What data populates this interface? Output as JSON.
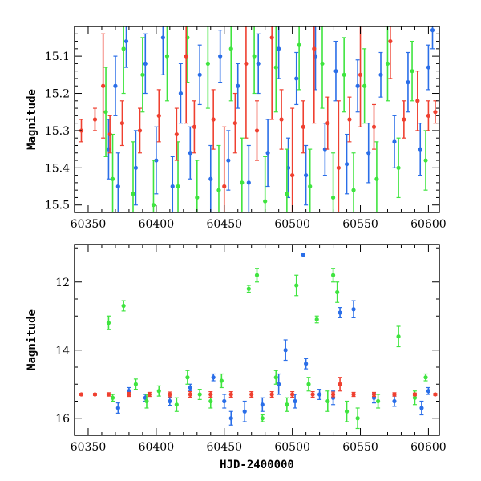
{
  "chart_data": [
    {
      "type": "scatter",
      "panel": "top",
      "title": "",
      "xlabel": "",
      "ylabel": "Magnitude",
      "xlim": [
        60340,
        60608
      ],
      "ylim": [
        15.52,
        15.02
      ],
      "y_inverted": true,
      "x_ticks": [
        60350,
        60400,
        60450,
        60500,
        60550,
        60600
      ],
      "x_tick_labels": [
        "60350",
        "60400",
        "60450",
        "60500",
        "60550",
        "60600"
      ],
      "y_ticks": [
        15.1,
        15.2,
        15.3,
        15.4,
        15.5
      ],
      "y_tick_labels": [
        "15.1",
        "15.2",
        "15.3",
        "15.4",
        "15.5"
      ],
      "grid": false,
      "legend": "none",
      "error_bars": true,
      "series": [
        {
          "color": "#2a6ee8",
          "points": [
            [
              60365,
              15.35,
              0.08
            ],
            [
              60370,
              15.18,
              0.08
            ],
            [
              60372,
              15.45,
              0.09
            ],
            [
              60378,
              15.06,
              0.07
            ],
            [
              60385,
              15.4,
              0.1
            ],
            [
              60392,
              15.12,
              0.08
            ],
            [
              60400,
              15.38,
              0.09
            ],
            [
              60405,
              15.05,
              0.1
            ],
            [
              60412,
              15.45,
              0.08
            ],
            [
              60418,
              15.2,
              0.08
            ],
            [
              60425,
              15.36,
              0.07
            ],
            [
              60432,
              15.15,
              0.08
            ],
            [
              60440,
              15.43,
              0.09
            ],
            [
              60447,
              15.1,
              0.07
            ],
            [
              60453,
              15.38,
              0.08
            ],
            [
              60460,
              15.18,
              0.06
            ],
            [
              60468,
              15.44,
              0.1
            ],
            [
              60475,
              15.12,
              0.08
            ],
            [
              60482,
              15.36,
              0.09
            ],
            [
              60490,
              15.08,
              0.08
            ],
            [
              60497,
              15.4,
              0.08
            ],
            [
              60503,
              15.16,
              0.07
            ],
            [
              60510,
              15.42,
              0.08
            ],
            [
              60517,
              15.1,
              0.09
            ],
            [
              60524,
              15.35,
              0.07
            ],
            [
              60532,
              15.14,
              0.08
            ],
            [
              60540,
              15.39,
              0.08
            ],
            [
              60548,
              15.18,
              0.07
            ],
            [
              60556,
              15.36,
              0.08
            ],
            [
              60565,
              15.15,
              0.06
            ],
            [
              60575,
              15.33,
              0.07
            ],
            [
              60585,
              15.17,
              0.08
            ],
            [
              60594,
              15.35,
              0.07
            ],
            [
              60600,
              15.13,
              0.06
            ],
            [
              60603,
              15.03,
              0.05
            ]
          ]
        },
        {
          "color": "#3fe43f",
          "points": [
            [
              60363,
              15.25,
              0.12
            ],
            [
              60368,
              15.43,
              0.12
            ],
            [
              60376,
              15.08,
              0.12
            ],
            [
              60383,
              15.47,
              0.14
            ],
            [
              60390,
              15.15,
              0.1
            ],
            [
              60398,
              15.5,
              0.12
            ],
            [
              60408,
              15.1,
              0.12
            ],
            [
              60416,
              15.45,
              0.12
            ],
            [
              60423,
              15.05,
              0.12
            ],
            [
              60430,
              15.48,
              0.1
            ],
            [
              60438,
              15.12,
              0.12
            ],
            [
              60446,
              15.46,
              0.12
            ],
            [
              60455,
              15.08,
              0.14
            ],
            [
              60463,
              15.44,
              0.12
            ],
            [
              60472,
              15.1,
              0.1
            ],
            [
              60480,
              15.49,
              0.12
            ],
            [
              60488,
              15.13,
              0.12
            ],
            [
              60496,
              15.47,
              0.12
            ],
            [
              60505,
              15.07,
              0.12
            ],
            [
              60513,
              15.45,
              0.1
            ],
            [
              60522,
              15.12,
              0.12
            ],
            [
              60530,
              15.48,
              0.12
            ],
            [
              60538,
              15.15,
              0.1
            ],
            [
              60545,
              15.46,
              0.1
            ],
            [
              60553,
              15.18,
              0.1
            ],
            [
              60562,
              15.43,
              0.1
            ],
            [
              60570,
              15.12,
              0.1
            ],
            [
              60578,
              15.4,
              0.08
            ],
            [
              60588,
              15.14,
              0.08
            ],
            [
              60598,
              15.38,
              0.08
            ]
          ]
        },
        {
          "color": "#ef4030",
          "points": [
            [
              60345,
              15.3,
              0.03
            ],
            [
              60355,
              15.27,
              0.03
            ],
            [
              60361,
              15.18,
              0.14
            ],
            [
              60366,
              15.31,
              0.05
            ],
            [
              60375,
              15.28,
              0.06
            ],
            [
              60388,
              15.3,
              0.06
            ],
            [
              60402,
              15.26,
              0.07
            ],
            [
              60415,
              15.31,
              0.07
            ],
            [
              60422,
              15.1,
              0.18
            ],
            [
              60428,
              15.29,
              0.07
            ],
            [
              60442,
              15.27,
              0.08
            ],
            [
              60450,
              15.45,
              0.16
            ],
            [
              60458,
              15.28,
              0.08
            ],
            [
              60466,
              15.12,
              0.2
            ],
            [
              60474,
              15.3,
              0.08
            ],
            [
              60485,
              15.05,
              0.22
            ],
            [
              60492,
              15.27,
              0.08
            ],
            [
              60500,
              15.42,
              0.18
            ],
            [
              60508,
              15.29,
              0.07
            ],
            [
              60516,
              15.08,
              0.2
            ],
            [
              60526,
              15.28,
              0.07
            ],
            [
              60534,
              15.4,
              0.18
            ],
            [
              60542,
              15.27,
              0.06
            ],
            [
              60550,
              15.15,
              0.14
            ],
            [
              60560,
              15.29,
              0.06
            ],
            [
              60572,
              15.06,
              0.1
            ],
            [
              60582,
              15.27,
              0.05
            ],
            [
              60592,
              15.22,
              0.08
            ],
            [
              60600,
              15.26,
              0.04
            ],
            [
              60605,
              15.25,
              0.03
            ]
          ]
        }
      ]
    },
    {
      "type": "scatter",
      "panel": "bottom",
      "title": "",
      "xlabel": "HJD-2400000",
      "ylabel": "Magnitude",
      "xlim": [
        60340,
        60608
      ],
      "ylim": [
        16.5,
        10.9
      ],
      "y_inverted": true,
      "x_ticks": [
        60350,
        60400,
        60450,
        60500,
        60550,
        60600
      ],
      "x_tick_labels": [
        "60350",
        "60400",
        "60450",
        "60500",
        "60550",
        "60600"
      ],
      "y_ticks": [
        12,
        14,
        16
      ],
      "y_tick_labels": [
        "12",
        "14",
        "16"
      ],
      "grid": false,
      "legend": "none",
      "error_bars": true,
      "series": [
        {
          "color": "#2a6ee8",
          "points": [
            [
              60372,
              15.7,
              0.15
            ],
            [
              60380,
              15.2,
              0.1
            ],
            [
              60392,
              15.4,
              0.1
            ],
            [
              60410,
              15.5,
              0.12
            ],
            [
              60425,
              15.1,
              0.1
            ],
            [
              60442,
              14.8,
              0.1
            ],
            [
              60450,
              15.5,
              0.2
            ],
            [
              60455,
              16.0,
              0.2
            ],
            [
              60465,
              15.8,
              0.3
            ],
            [
              60478,
              15.6,
              0.2
            ],
            [
              60490,
              15.0,
              0.3
            ],
            [
              60495,
              14.0,
              0.3
            ],
            [
              60502,
              15.5,
              0.2
            ],
            [
              60508,
              11.2,
              0.02
            ],
            [
              60510,
              14.4,
              0.15
            ],
            [
              60520,
              15.3,
              0.15
            ],
            [
              60530,
              15.4,
              0.2
            ],
            [
              60535,
              12.9,
              0.15
            ],
            [
              60545,
              12.8,
              0.25
            ],
            [
              60560,
              15.4,
              0.15
            ],
            [
              60575,
              15.5,
              0.15
            ],
            [
              60595,
              15.7,
              0.2
            ],
            [
              60600,
              15.2,
              0.1
            ]
          ]
        },
        {
          "color": "#3fe43f",
          "points": [
            [
              60365,
              13.2,
              0.2
            ],
            [
              60368,
              15.4,
              0.1
            ],
            [
              60376,
              12.7,
              0.15
            ],
            [
              60385,
              15.0,
              0.15
            ],
            [
              60393,
              15.5,
              0.2
            ],
            [
              60402,
              15.2,
              0.15
            ],
            [
              60415,
              15.6,
              0.2
            ],
            [
              60423,
              14.8,
              0.2
            ],
            [
              60432,
              15.3,
              0.15
            ],
            [
              60440,
              15.5,
              0.2
            ],
            [
              60448,
              14.9,
              0.2
            ],
            [
              60468,
              12.2,
              0.1
            ],
            [
              60474,
              11.8,
              0.2
            ],
            [
              60478,
              16.0,
              0.1
            ],
            [
              60488,
              14.8,
              0.2
            ],
            [
              60496,
              15.6,
              0.2
            ],
            [
              60503,
              12.1,
              0.3
            ],
            [
              60512,
              15.0,
              0.2
            ],
            [
              60518,
              13.1,
              0.1
            ],
            [
              60526,
              15.5,
              0.3
            ],
            [
              60530,
              11.8,
              0.2
            ],
            [
              60533,
              12.3,
              0.3
            ],
            [
              60540,
              15.8,
              0.3
            ],
            [
              60548,
              16.0,
              0.3
            ],
            [
              60563,
              15.5,
              0.2
            ],
            [
              60578,
              13.6,
              0.3
            ],
            [
              60590,
              15.4,
              0.2
            ],
            [
              60598,
              14.8,
              0.1
            ]
          ]
        },
        {
          "color": "#ef4030",
          "points": [
            [
              60345,
              15.3,
              0.03
            ],
            [
              60355,
              15.3,
              0.03
            ],
            [
              60365,
              15.3,
              0.05
            ],
            [
              60380,
              15.3,
              0.06
            ],
            [
              60395,
              15.3,
              0.06
            ],
            [
              60410,
              15.3,
              0.07
            ],
            [
              60425,
              15.3,
              0.08
            ],
            [
              60440,
              15.3,
              0.08
            ],
            [
              60455,
              15.3,
              0.08
            ],
            [
              60470,
              15.3,
              0.08
            ],
            [
              60485,
              15.3,
              0.08
            ],
            [
              60500,
              15.3,
              0.08
            ],
            [
              60515,
              15.3,
              0.08
            ],
            [
              60530,
              15.3,
              0.07
            ],
            [
              60535,
              15.0,
              0.2
            ],
            [
              60545,
              15.3,
              0.06
            ],
            [
              60560,
              15.3,
              0.06
            ],
            [
              60575,
              15.3,
              0.05
            ],
            [
              60590,
              15.3,
              0.04
            ],
            [
              60605,
              15.3,
              0.03
            ]
          ]
        }
      ]
    }
  ]
}
